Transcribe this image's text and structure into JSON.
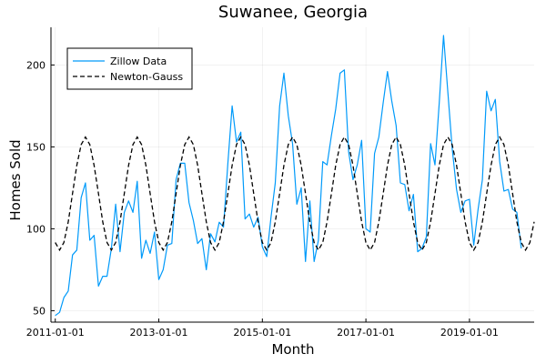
{
  "chart_data": {
    "type": "line",
    "title": "Suwanee, Georgia",
    "xlabel": "Month",
    "ylabel": "Homes Sold",
    "xlim": [
      "2010-12-01",
      "2020-04-01"
    ],
    "ylim": [
      43,
      223
    ],
    "x_ticks": [
      "2011-01-01",
      "2013-01-01",
      "2015-01-01",
      "2017-01-01",
      "2019-01-01"
    ],
    "y_ticks": [
      50,
      100,
      150,
      200
    ],
    "grid": true,
    "legend": "top-left",
    "series": [
      {
        "name": "Zillow Data",
        "color": "#009AFA",
        "style": "solid",
        "start": "2011-01",
        "values": [
          47,
          49,
          58,
          62,
          84,
          87,
          119,
          128,
          93,
          96,
          65,
          71,
          71,
          88,
          115,
          86,
          110,
          117,
          110,
          129,
          82,
          93,
          85,
          98,
          69,
          75,
          90,
          91,
          130,
          140,
          140,
          116,
          105,
          91,
          94,
          75,
          97,
          92,
          104,
          101,
          140,
          175,
          153,
          159,
          106,
          109,
          101,
          107,
          89,
          83,
          107,
          128,
          175,
          195,
          169,
          152,
          115,
          125,
          80,
          117,
          80,
          93,
          141,
          139,
          157,
          173,
          195,
          197,
          147,
          130,
          139,
          154,
          100,
          98,
          146,
          156,
          177,
          196,
          178,
          163,
          128,
          127,
          111,
          121,
          86,
          88,
          95,
          152,
          139,
          177,
          218,
          183,
          149,
          124,
          110,
          117,
          118,
          90,
          112,
          130,
          184,
          172,
          179,
          141,
          123,
          124,
          112,
          110,
          88
        ]
      },
      {
        "name": "Newton-Gauss",
        "color": "#000000",
        "style": "dashed",
        "start": "2011-01",
        "mean": 121.5,
        "amplitude": 34.5,
        "peak_month_offset": 7,
        "period_months": 12,
        "points": 112
      }
    ]
  }
}
